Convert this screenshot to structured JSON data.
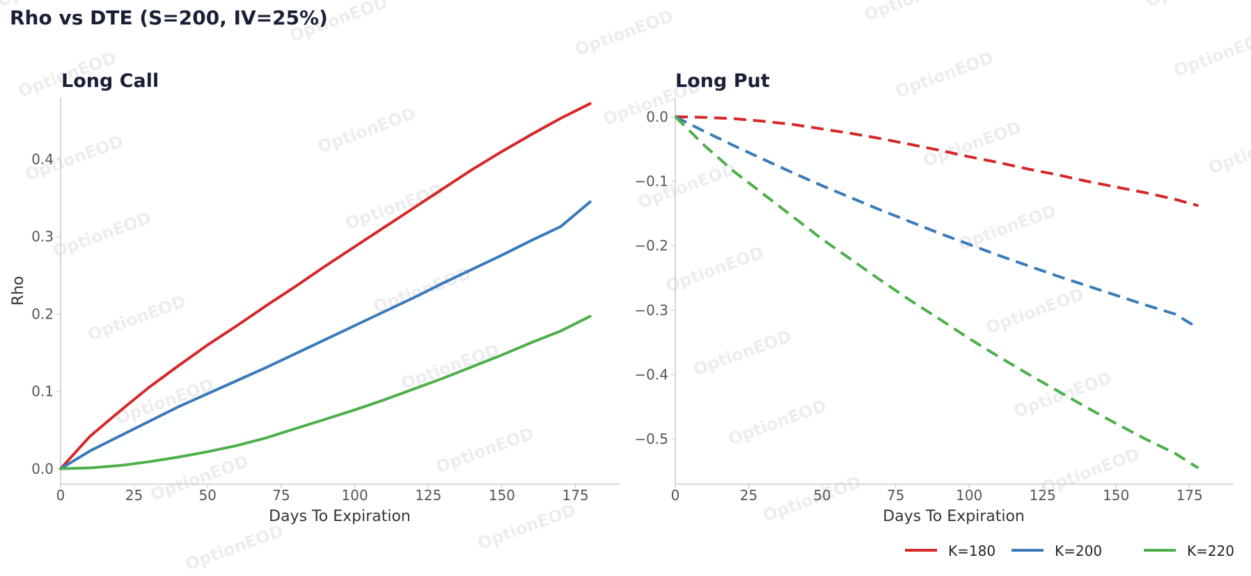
{
  "title": "Rho vs DTE (S=200, IV=25%)",
  "watermark": "OptionEOD",
  "legend": {
    "placement": "bottom-right",
    "entries": [
      {
        "label": "K=180",
        "color": "#d62728"
      },
      {
        "label": "K=200",
        "color": "#3a7ab8"
      },
      {
        "label": "K=220",
        "color": "#4daf4a"
      }
    ]
  },
  "chart_data": [
    {
      "type": "line",
      "title": "Long Call",
      "xlabel": "Days To Expiration",
      "ylabel": "Rho",
      "xlim": [
        0,
        190
      ],
      "ylim": [
        -0.02,
        0.48
      ],
      "xticks": [
        0,
        25,
        50,
        75,
        100,
        125,
        150,
        175
      ],
      "yticks": [
        0.0,
        0.1,
        0.2,
        0.3,
        0.4
      ],
      "ytick_labels": [
        "0.0",
        "0.1",
        "0.2",
        "0.3",
        "0.4"
      ],
      "line_style": "solid",
      "grid": false,
      "x": [
        0,
        10,
        20,
        30,
        40,
        50,
        60,
        70,
        80,
        90,
        100,
        110,
        120,
        130,
        140,
        150,
        160,
        170,
        180
      ],
      "series": [
        {
          "name": "K=180",
          "color": "#d62728",
          "values": [
            0.0,
            0.042,
            0.074,
            0.105,
            0.133,
            0.16,
            0.185,
            0.211,
            0.236,
            0.262,
            0.287,
            0.312,
            0.337,
            0.362,
            0.387,
            0.41,
            0.432,
            0.453,
            0.472
          ]
        },
        {
          "name": "K=200",
          "color": "#3a7ab8",
          "values": [
            0.0,
            0.023,
            0.042,
            0.061,
            0.08,
            0.097,
            0.114,
            0.131,
            0.149,
            0.167,
            0.185,
            0.203,
            0.221,
            0.24,
            0.258,
            0.276,
            0.295,
            0.313,
            0.345
          ]
        },
        {
          "name": "K=220",
          "color": "#4daf4a",
          "values": [
            0.0,
            0.001,
            0.004,
            0.009,
            0.015,
            0.022,
            0.03,
            0.04,
            0.052,
            0.064,
            0.076,
            0.089,
            0.103,
            0.117,
            0.132,
            0.147,
            0.163,
            0.178,
            0.197
          ]
        }
      ]
    },
    {
      "type": "line",
      "title": "Long Put",
      "xlabel": "Days To Expiration",
      "ylabel": "",
      "xlim": [
        0,
        190
      ],
      "ylim": [
        -0.57,
        0.03
      ],
      "xticks": [
        0,
        25,
        50,
        75,
        100,
        125,
        150,
        175
      ],
      "yticks": [
        0.0,
        -0.1,
        -0.2,
        -0.3,
        -0.4,
        -0.5
      ],
      "ytick_labels": [
        "0.0",
        "−0.1",
        "−0.2",
        "−0.3",
        "−0.4",
        "−0.5"
      ],
      "line_style": "dashed",
      "grid": false,
      "x": [
        0,
        10,
        20,
        30,
        40,
        50,
        60,
        70,
        80,
        90,
        100,
        110,
        120,
        130,
        140,
        150,
        160,
        170,
        178
      ],
      "series": [
        {
          "name": "K=180",
          "color": "#d62728",
          "values": [
            0.0,
            -0.001,
            -0.003,
            -0.007,
            -0.012,
            -0.019,
            -0.026,
            -0.034,
            -0.043,
            -0.052,
            -0.062,
            -0.071,
            -0.081,
            -0.09,
            -0.1,
            -0.109,
            -0.118,
            -0.128,
            -0.138
          ]
        },
        {
          "name": "K=200",
          "color": "#3a7ab8",
          "values": [
            0.0,
            -0.023,
            -0.045,
            -0.066,
            -0.087,
            -0.107,
            -0.126,
            -0.145,
            -0.163,
            -0.181,
            -0.198,
            -0.215,
            -0.231,
            -0.247,
            -0.262,
            -0.277,
            -0.292,
            -0.306,
            -0.328
          ]
        },
        {
          "name": "K=220",
          "color": "#4daf4a",
          "values": [
            0.0,
            -0.045,
            -0.085,
            -0.12,
            -0.155,
            -0.19,
            -0.222,
            -0.254,
            -0.285,
            -0.314,
            -0.344,
            -0.372,
            -0.399,
            -0.425,
            -0.451,
            -0.476,
            -0.5,
            -0.522,
            -0.545
          ]
        }
      ]
    }
  ]
}
